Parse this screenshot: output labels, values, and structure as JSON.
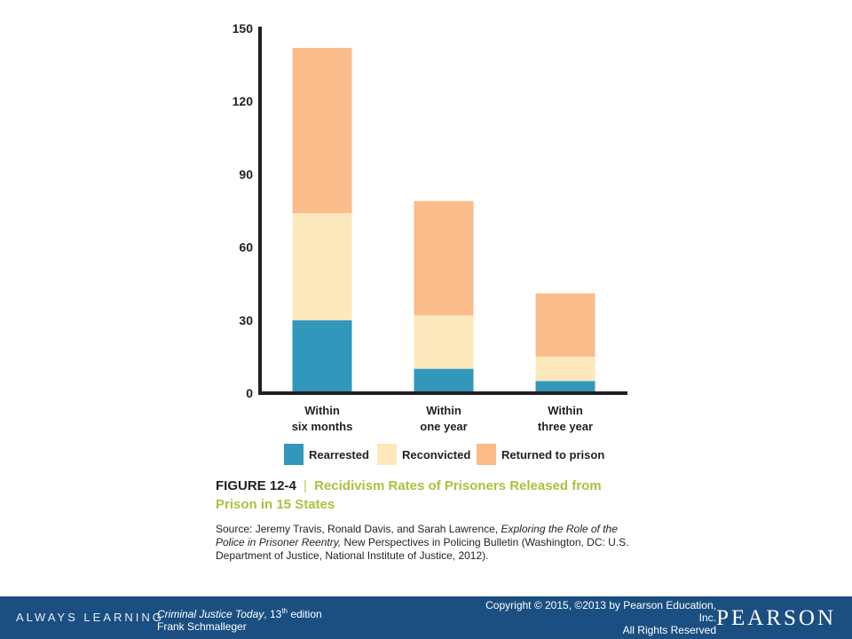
{
  "chart_data": {
    "type": "bar",
    "stacked": true,
    "categories": [
      [
        "Within",
        "six months"
      ],
      [
        "Within",
        "one year"
      ],
      [
        "Within",
        "three year"
      ]
    ],
    "series": [
      {
        "name": "Rearrested",
        "values": [
          30,
          10,
          5
        ],
        "color": "#3198bb"
      },
      {
        "name": "Reconvicted",
        "values": [
          44,
          22,
          10
        ],
        "color": "#fde8bb"
      },
      {
        "name": "Returned to prison",
        "values": [
          68,
          47,
          26
        ],
        "color": "#f9bc8a"
      }
    ],
    "yticks": [
      "0",
      "30",
      "60",
      "90",
      "120",
      "150"
    ],
    "ylim": [
      0,
      150
    ],
    "grid": false,
    "legend": "bottom"
  },
  "figure": {
    "number": "FIGURE 12-4",
    "separator": "|",
    "title": "Recidivism Rates of Prisoners Released from Prison in 15 States",
    "source_prefix": "Source: Jeremy Travis, Ronald Davis, and Sarah Lawrence, ",
    "source_title": "Exploring the Role of the Police in Prisoner Reentry,",
    "source_suffix": " New Perspectives in Policing Bulletin (Washington, DC: U.S. Department of Justice, National Institute of Justice, 2012)."
  },
  "footer": {
    "tagline": "ALWAYS LEARNING",
    "book_title": "Criminal Justice Today",
    "edition_number": "13",
    "edition_suffix": "th",
    "edition_word": " edition",
    "author": "Frank Schmalleger",
    "copyright_line1": "Copyright © 2015, ©2013 by Pearson Education,",
    "copyright_line2": "Inc.",
    "copyright_line3": "All Rights Reserved",
    "brand": "PEARSON"
  }
}
